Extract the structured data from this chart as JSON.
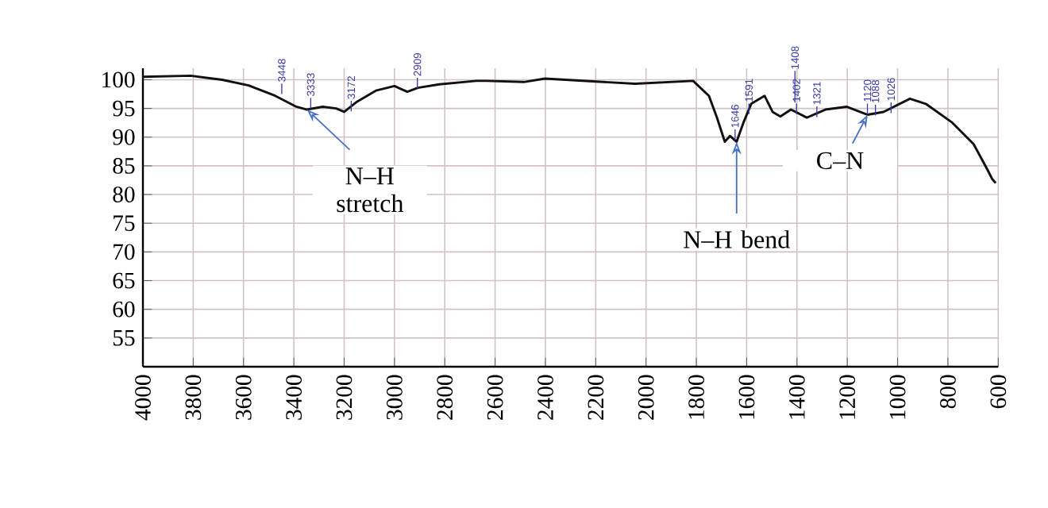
{
  "chart_data": {
    "type": "line",
    "x": [
      4000,
      3810,
      3685,
      3580,
      3474,
      3390,
      3348,
      3285,
      3232,
      3200,
      3148,
      3074,
      3000,
      2949,
      2907,
      2822,
      2675,
      2633,
      2486,
      2402,
      2044,
      1813,
      1750,
      1718,
      1687,
      1666,
      1640,
      1613,
      1582,
      1529,
      1497,
      1466,
      1424,
      1361,
      1287,
      1203,
      1119,
      1056,
      951,
      888,
      782,
      698,
      645,
      624,
      610
    ],
    "series": [
      {
        "color": "#111111",
        "values": [
          100.5,
          100.7,
          100,
          99,
          97.2,
          95.3,
          94.8,
          95.3,
          95,
          94.4,
          96.2,
          98.1,
          98.9,
          97.9,
          98.6,
          99.2,
          99.8,
          99.8,
          99.6,
          100.2,
          99.3,
          99.8,
          97.2,
          93.4,
          89.2,
          90.2,
          89.2,
          92.5,
          95.8,
          97.2,
          94.4,
          93.6,
          94.8,
          93.4,
          94.8,
          95.3,
          93.9,
          94.4,
          96.7,
          95.8,
          92.5,
          88.8,
          84.5,
          82.7,
          82
        ]
      }
    ],
    "xlim": [
      4000,
      600
    ],
    "ylim": [
      50,
      102
    ],
    "xticks": [
      4000,
      3800,
      3600,
      3400,
      3200,
      3000,
      2800,
      2600,
      2400,
      2200,
      2000,
      1800,
      1600,
      1400,
      1200,
      1000,
      800,
      600
    ],
    "yticks": [
      55,
      60,
      65,
      70,
      75,
      80,
      85,
      90,
      95,
      100
    ],
    "grid": true,
    "annotations": [
      {
        "text": "3448",
        "x": 3448,
        "y": 97.5
      },
      {
        "text": "3333",
        "x": 3333,
        "y": 95
      },
      {
        "text": "3172",
        "x": 3172,
        "y": 94.5
      },
      {
        "text": "2909",
        "x": 2909,
        "y": 98.5
      },
      {
        "text": "1646",
        "x": 1646,
        "y": 89.5
      },
      {
        "text": "1591",
        "x": 1591,
        "y": 94
      },
      {
        "text": "1408",
        "x": 1408,
        "y": 96
      },
      {
        "text": "1402",
        "x": 1402,
        "y": 94
      },
      {
        "text": "1321",
        "x": 1321,
        "y": 93.5
      },
      {
        "text": "1120",
        "x": 1120,
        "y": 94
      },
      {
        "text": "1088",
        "x": 1088,
        "y": 93.8
      },
      {
        "text": "1026",
        "x": 1026,
        "y": 94.2
      },
      {
        "text": "N–H stretch",
        "x": 3348,
        "y": 94.8
      },
      {
        "text": "N–H bend",
        "x": 1640,
        "y": 89.2
      },
      {
        "text": "C–N",
        "x": 1119,
        "y": 93.9
      }
    ]
  }
}
